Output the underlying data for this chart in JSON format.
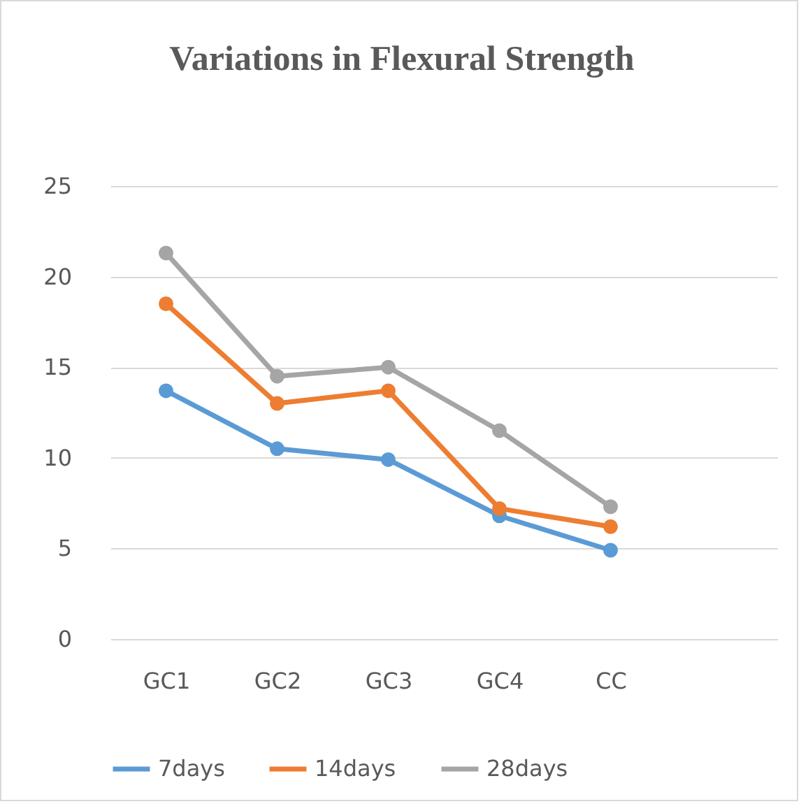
{
  "chart_data": {
    "type": "line",
    "title": "Variations in Flexural Strength",
    "categories": [
      "GC1",
      "GC2",
      "GC3",
      "GC4",
      "CC",
      null
    ],
    "series": [
      {
        "name": "7days",
        "color": "#5b9bd5",
        "values": [
          13.7,
          10.5,
          9.9,
          6.8,
          4.9,
          null
        ]
      },
      {
        "name": "14days",
        "color": "#ed7d31",
        "values": [
          18.5,
          13.0,
          13.7,
          7.2,
          6.2,
          null
        ]
      },
      {
        "name": "28days",
        "color": "#a5a5a5",
        "values": [
          21.3,
          14.5,
          15.0,
          11.5,
          7.3,
          null
        ]
      }
    ],
    "ylim": [
      0,
      25
    ],
    "yticks": [
      0,
      5,
      10,
      15,
      20,
      25
    ],
    "grid": "y",
    "legend": "bottom",
    "marker": "circle",
    "line_style": "solid"
  }
}
